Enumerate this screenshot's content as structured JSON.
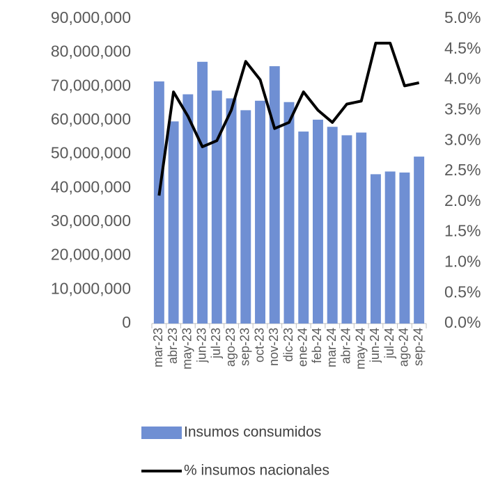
{
  "chart_data": {
    "type": "bar",
    "categories": [
      "mar-23",
      "abr-23",
      "may-23",
      "jun-23",
      "jul-23",
      "ago-23",
      "sep-23",
      "oct-23",
      "nov-23",
      "dic-23",
      "ene-24",
      "feb-24",
      "mar-24",
      "abr-24",
      "may-24",
      "jun-24",
      "jul-24",
      "ago-24",
      "sep-24"
    ],
    "series": [
      {
        "name": "Insumos consumidos",
        "type": "bar",
        "color": "#6f8fd3",
        "values": [
          71500000,
          59700000,
          67700000,
          77300000,
          68800000,
          66500000,
          63000000,
          65800000,
          76000000,
          65400000,
          56700000,
          60200000,
          58100000,
          55600000,
          56400000,
          44100000,
          44900000,
          44600000,
          49300000
        ]
      },
      {
        "name": "% insumos nacionales",
        "type": "line",
        "color": "#000000",
        "axis": "y2",
        "values": [
          2.1,
          3.8,
          3.4,
          2.9,
          3.0,
          3.5,
          4.3,
          4.0,
          3.2,
          3.3,
          3.8,
          3.5,
          3.3,
          3.6,
          3.65,
          4.6,
          4.6,
          3.9,
          3.95
        ]
      }
    ],
    "ylim": [
      0,
      90000000
    ],
    "yticks": [
      0,
      {
        "value": 10000000,
        "label": "10,000,000"
      },
      {
        "value": 20000000,
        "label": "20,000,000"
      },
      {
        "value": 30000000,
        "label": "30,000,000"
      },
      {
        "value": 40000000,
        "label": "40,000,000"
      },
      {
        "value": 50000000,
        "label": "50,000,000"
      },
      {
        "value": 60000000,
        "label": "60,000,000"
      },
      {
        "value": 70000000,
        "label": "70,000,000"
      },
      {
        "value": 80000000,
        "label": "80,000,000"
      },
      {
        "value": 90000000,
        "label": "90,000,000"
      }
    ],
    "y2lim": [
      0,
      5
    ],
    "y2ticks": [
      {
        "value": 0,
        "label": "0.0%"
      },
      {
        "value": 0.5,
        "label": "0.5%"
      },
      {
        "value": 1,
        "label": "1.0%"
      },
      {
        "value": 1.5,
        "label": "1.5%"
      },
      {
        "value": 2,
        "label": "2.0%"
      },
      {
        "value": 2.5,
        "label": "2.5%"
      },
      {
        "value": 3,
        "label": "3.0%"
      },
      {
        "value": 3.5,
        "label": "3.5%"
      },
      {
        "value": 4,
        "label": "4.0%"
      },
      {
        "value": 4.5,
        "label": "4.5%"
      },
      {
        "value": 5,
        "label": "5.0%"
      }
    ],
    "legend": "bottom"
  }
}
